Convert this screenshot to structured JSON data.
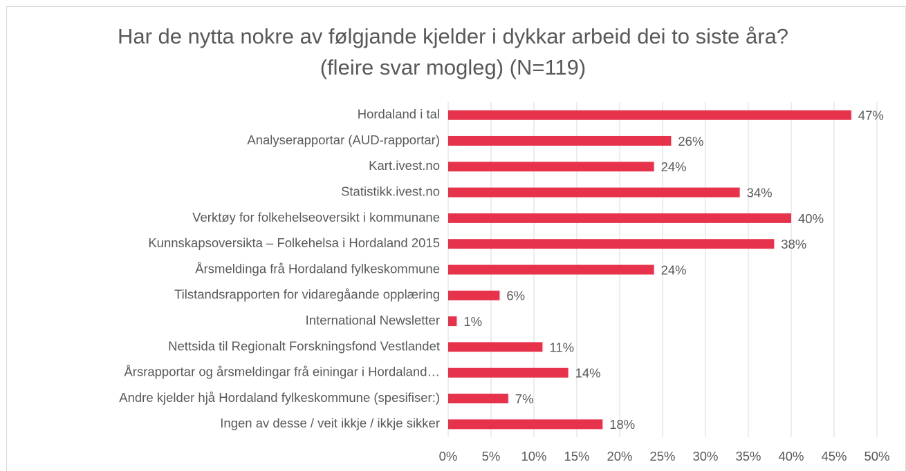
{
  "chart_data": {
    "type": "bar",
    "orientation": "horizontal",
    "title": "Har de nytta nokre av følgjande kjelder i dykkar arbeid dei to siste åra? (fleire svar mogleg) (N=119)",
    "categories": [
      "Hordaland i tal",
      "Analyserapportar (AUD-rapportar)",
      "Kart.ivest.no",
      "Statistikk.ivest.no",
      "Verktøy for folkehelseoversikt i kommunane",
      "Kunnskapsoversikta – Folkehelsa i Hordaland 2015",
      "Årsmeldinga frå Hordaland fylkeskommune",
      "Tilstandsrapporten for vidaregåande opplæring",
      "International Newsletter",
      "Nettsida til Regionalt Forskningsfond Vestlandet",
      "Årsrapportar og årsmeldingar frå einingar i Hordaland…",
      "Andre kjelder hjå Hordaland fylkeskommune (spesifiser:)",
      "Ingen av desse / veit ikkje / ikkje sikker"
    ],
    "values": [
      47,
      26,
      24,
      34,
      40,
      38,
      24,
      6,
      1,
      11,
      14,
      7,
      18
    ],
    "value_labels": [
      "47%",
      "26%",
      "24%",
      "34%",
      "40%",
      "38%",
      "24%",
      "6%",
      "1%",
      "11%",
      "14%",
      "7%",
      "18%"
    ],
    "color": "#e6324b",
    "xlim": [
      0,
      50
    ],
    "xticks": [
      {
        "value": 0,
        "label": "0%"
      },
      {
        "value": 5,
        "label": "5%"
      },
      {
        "value": 10,
        "label": "10%"
      },
      {
        "value": 15,
        "label": "15%"
      },
      {
        "value": 20,
        "label": "20%"
      },
      {
        "value": 25,
        "label": "25%"
      },
      {
        "value": 30,
        "label": "30%"
      },
      {
        "value": 35,
        "label": "35%"
      },
      {
        "value": 40,
        "label": "40%"
      },
      {
        "value": 45,
        "label": "45%"
      },
      {
        "value": 50,
        "label": "50%"
      }
    ],
    "grid": true
  }
}
